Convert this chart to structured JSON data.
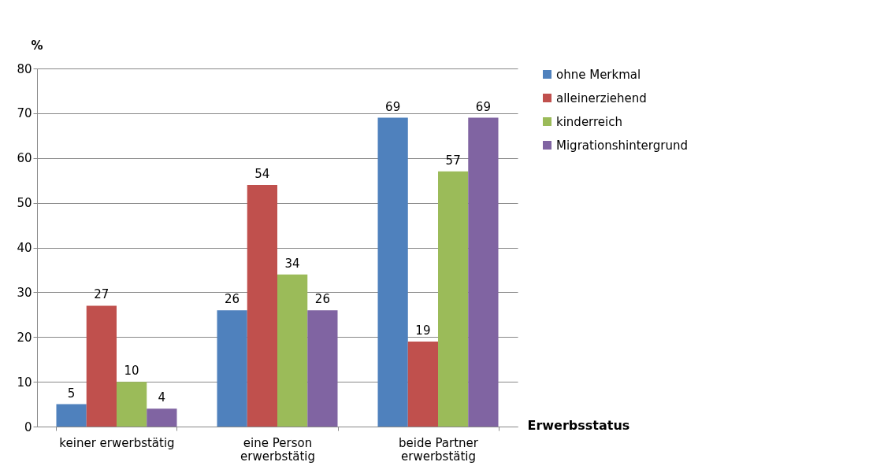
{
  "chart_data": {
    "type": "bar",
    "ylabel": "%",
    "xlabel": "Erwerbsstatus",
    "categories": [
      "keiner erwerbstätig",
      "eine Person\nerwerbstätig",
      "beide Partner\nerwerbstätig"
    ],
    "series": [
      {
        "name": "ohne Merkmal",
        "color": "#4f81bd",
        "values": [
          5,
          26,
          69
        ]
      },
      {
        "name": "alleinerziehend",
        "color": "#c0504d",
        "values": [
          27,
          54,
          19
        ]
      },
      {
        "name": "kinderreich",
        "color": "#9bbb59",
        "values": [
          10,
          34,
          57
        ]
      },
      {
        "name": "Migrationshintergrund",
        "color": "#8064a2",
        "values": [
          4,
          26,
          69
        ]
      }
    ],
    "ylim": [
      0,
      80
    ],
    "yticks": [
      0,
      10,
      20,
      30,
      40,
      50,
      60,
      70,
      80
    ],
    "grid": "y",
    "legend": "right",
    "data_labels": true
  }
}
